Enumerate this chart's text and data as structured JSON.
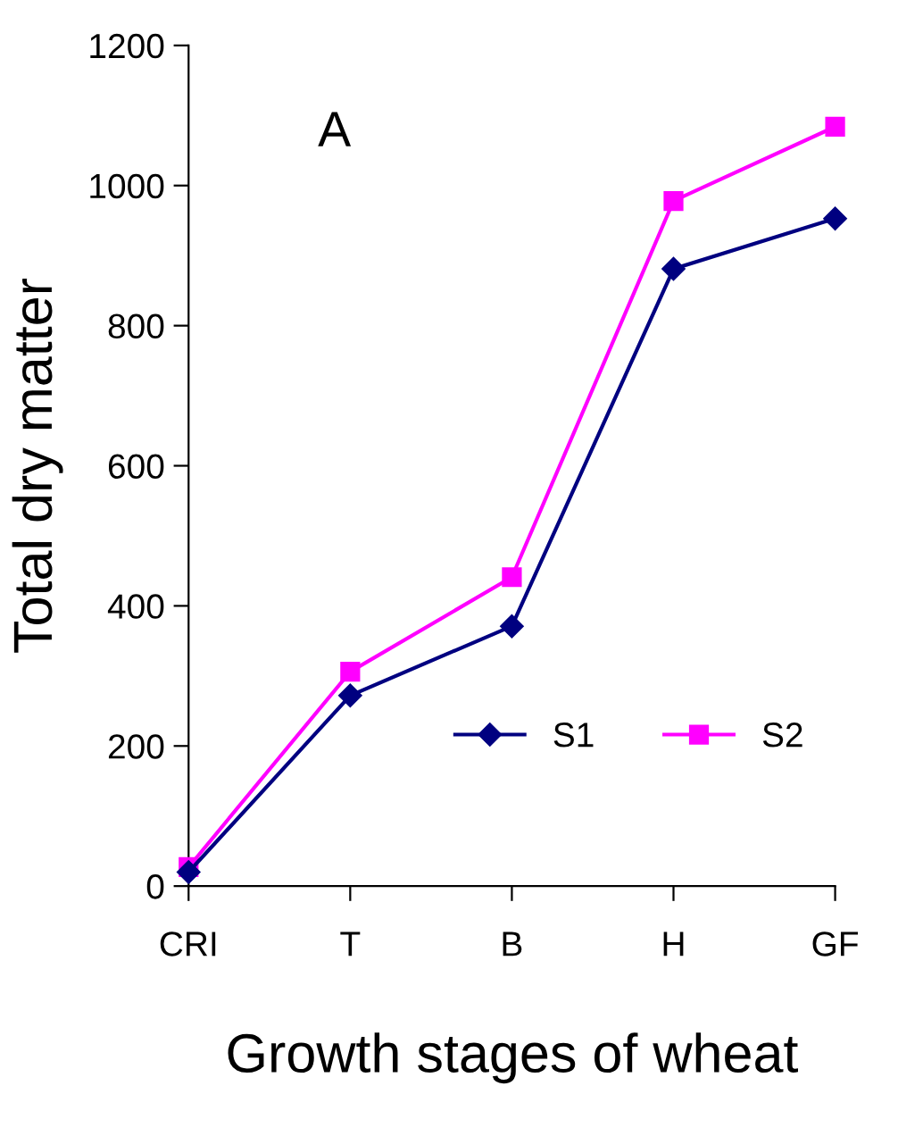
{
  "chart_data": {
    "type": "line",
    "xlabel": "Growth stages of wheat",
    "ylabel": "Total dry matter",
    "annotations": [
      "A"
    ],
    "categories": [
      "CRI",
      "T",
      "B",
      "H",
      "GF"
    ],
    "series": [
      {
        "name": "S1",
        "color": "#000080",
        "values": [
          20,
          272,
          371,
          881,
          953
        ],
        "marker": "diamond"
      },
      {
        "name": "S2",
        "color": "#ff00ff",
        "values": [
          27,
          306,
          441,
          978,
          1084
        ],
        "marker": "square"
      }
    ],
    "ylim": [
      0,
      1200
    ],
    "yticks": [
      0,
      200,
      400,
      600,
      800,
      1000,
      1200
    ],
    "grid": false,
    "legend": "bottom right",
    "line_style": "solid"
  }
}
